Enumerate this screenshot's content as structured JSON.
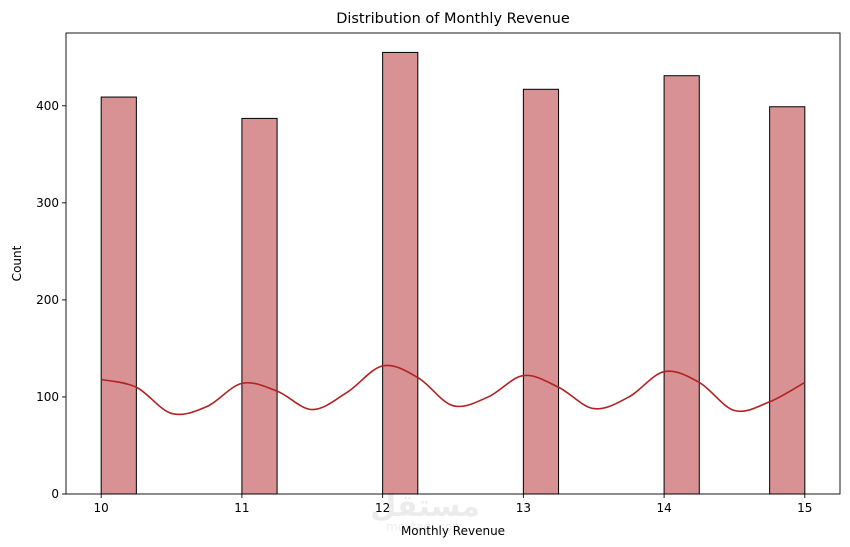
{
  "chart_data": {
    "type": "bar",
    "title": "Distribution of Monthly Revenue",
    "xlabel": "Monthly Revenue",
    "ylabel": "Count",
    "xlim": [
      9.75,
      15.25
    ],
    "ylim": [
      0,
      475
    ],
    "xticks": [
      "10",
      "11",
      "12",
      "13",
      "14",
      "15"
    ],
    "yticks": [
      "0",
      "100",
      "200",
      "300",
      "400"
    ],
    "bins": [
      {
        "x0": 10.0,
        "x1": 10.25,
        "count": 409
      },
      {
        "x0": 11.0,
        "x1": 11.25,
        "count": 387
      },
      {
        "x0": 12.0,
        "x1": 12.25,
        "count": 455
      },
      {
        "x0": 13.0,
        "x1": 13.25,
        "count": 417
      },
      {
        "x0": 14.0,
        "x1": 14.25,
        "count": 431
      },
      {
        "x0": 14.75,
        "x1": 15.0,
        "count": 399
      }
    ],
    "kde_curve": [
      [
        10.0,
        118
      ],
      [
        10.25,
        110
      ],
      [
        10.5,
        83
      ],
      [
        10.75,
        90
      ],
      [
        11.0,
        114
      ],
      [
        11.25,
        106
      ],
      [
        11.5,
        87
      ],
      [
        11.75,
        105
      ],
      [
        12.0,
        132
      ],
      [
        12.25,
        120
      ],
      [
        12.5,
        91
      ],
      [
        12.75,
        100
      ],
      [
        13.0,
        122
      ],
      [
        13.25,
        110
      ],
      [
        13.5,
        88
      ],
      [
        13.75,
        100
      ],
      [
        14.0,
        126
      ],
      [
        14.25,
        115
      ],
      [
        14.5,
        86
      ],
      [
        14.75,
        95
      ],
      [
        15.0,
        115
      ]
    ],
    "bar_color": "#d89294",
    "kde_color": "#b22222",
    "grid": false,
    "legend": "none"
  },
  "watermark": {
    "logo_text": "مستقل",
    "sub_text": "mostaql.com"
  }
}
